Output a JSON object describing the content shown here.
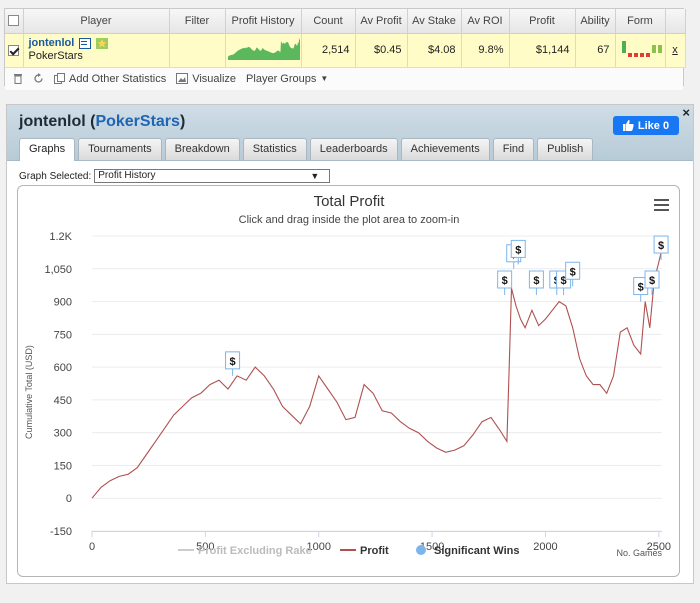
{
  "player_table": {
    "columns": [
      "",
      "Player",
      "Filter",
      "Profit History",
      "Count",
      "Av Profit",
      "Av Stake",
      "Av ROI",
      "Profit",
      "Ability",
      "Form",
      ""
    ],
    "row": {
      "checked": true,
      "player_name": "jontenlol",
      "site": "PokerStars",
      "count": "2,514",
      "av_profit": "$0.45",
      "av_stake": "$4.08",
      "av_roi": "9.8%",
      "profit": "$1,144",
      "ability": "67",
      "remove_label": "x"
    },
    "form_bars": [
      {
        "value": 3,
        "color": "#4caf50"
      },
      {
        "value": -1,
        "color": "#e53935"
      },
      {
        "value": -1,
        "color": "#e53935"
      },
      {
        "value": -1,
        "color": "#e53935"
      },
      {
        "value": -1,
        "color": "#e53935"
      },
      {
        "value": 2,
        "color": "#8bc34a"
      },
      {
        "value": 2,
        "color": "#8bc34a"
      }
    ],
    "toolbar": {
      "add_stats_label": "Add Other Statistics",
      "visualize_label": "Visualize",
      "player_groups_label": "Player Groups"
    }
  },
  "panel": {
    "player_name": "jontenlol",
    "site": "PokerStars",
    "like_label": "Like 0",
    "close_label": "×",
    "tabs": [
      "Graphs",
      "Tournaments",
      "Breakdown",
      "Statistics",
      "Leaderboards",
      "Achievements",
      "Find",
      "Publish"
    ],
    "active_tab": "Graphs",
    "graph_selected_label": "Graph Selected:",
    "graph_selected_value": "Profit History"
  },
  "chart_data": {
    "type": "line",
    "title": "Total Profit",
    "subtitle": "Click and drag inside the plot area to zoom-in",
    "xlabel": "No. Games",
    "ylabel": "Cumulative Total (USD)",
    "xlim": [
      0,
      2514
    ],
    "ylim": [
      -150,
      1200
    ],
    "xticks": [
      0,
      500,
      1000,
      1500,
      2000,
      2500
    ],
    "yticks": [
      -150,
      0,
      150,
      300,
      450,
      600,
      750,
      900,
      1050,
      1200
    ],
    "ytick_labels": [
      "-150",
      "0",
      "150",
      "300",
      "450",
      "600",
      "750",
      "900",
      "1,050",
      "1.2K"
    ],
    "series": [
      {
        "name": "Profit",
        "color": "#b05050",
        "x": [
          0,
          40,
          80,
          120,
          160,
          200,
          240,
          280,
          320,
          360,
          400,
          440,
          480,
          520,
          560,
          600,
          640,
          680,
          720,
          760,
          800,
          840,
          880,
          920,
          960,
          1000,
          1040,
          1080,
          1120,
          1160,
          1200,
          1240,
          1280,
          1320,
          1360,
          1400,
          1440,
          1480,
          1520,
          1560,
          1600,
          1640,
          1680,
          1720,
          1760,
          1800,
          1830,
          1840,
          1850,
          1870,
          1890,
          1910,
          1940,
          1970,
          2000,
          2030,
          2060,
          2090,
          2120,
          2150,
          2180,
          2210,
          2240,
          2270,
          2300,
          2330,
          2360,
          2390,
          2420,
          2440,
          2460,
          2480,
          2500,
          2514
        ],
        "values": [
          0,
          50,
          80,
          100,
          110,
          140,
          200,
          260,
          320,
          380,
          420,
          460,
          480,
          520,
          540,
          500,
          560,
          540,
          600,
          560,
          500,
          420,
          380,
          340,
          420,
          560,
          500,
          440,
          360,
          370,
          520,
          480,
          400,
          390,
          350,
          320,
          300,
          260,
          230,
          210,
          220,
          240,
          290,
          350,
          370,
          310,
          260,
          600,
          960,
          880,
          820,
          780,
          860,
          790,
          820,
          860,
          900,
          880,
          780,
          640,
          560,
          520,
          520,
          480,
          560,
          760,
          780,
          700,
          660,
          900,
          780,
          1000,
          1080,
          1144
        ]
      },
      {
        "name": "Profit Excluding Rake",
        "color": "#cccccc",
        "hidden": true
      },
      {
        "name": "Significant Wins",
        "color": "#7cb5ec",
        "marker_label": "$",
        "points": [
          [
            620,
            560
          ],
          [
            1820,
            930
          ],
          [
            1860,
            1050
          ],
          [
            1880,
            1070
          ],
          [
            1960,
            930
          ],
          [
            2050,
            930
          ],
          [
            2080,
            930
          ],
          [
            2120,
            970
          ],
          [
            2420,
            900
          ],
          [
            2470,
            930
          ],
          [
            2510,
            1090
          ]
        ]
      }
    ],
    "legend": [
      "Profit Excluding Rake",
      "Profit",
      "Significant Wins"
    ],
    "legend_position": "bottom"
  }
}
